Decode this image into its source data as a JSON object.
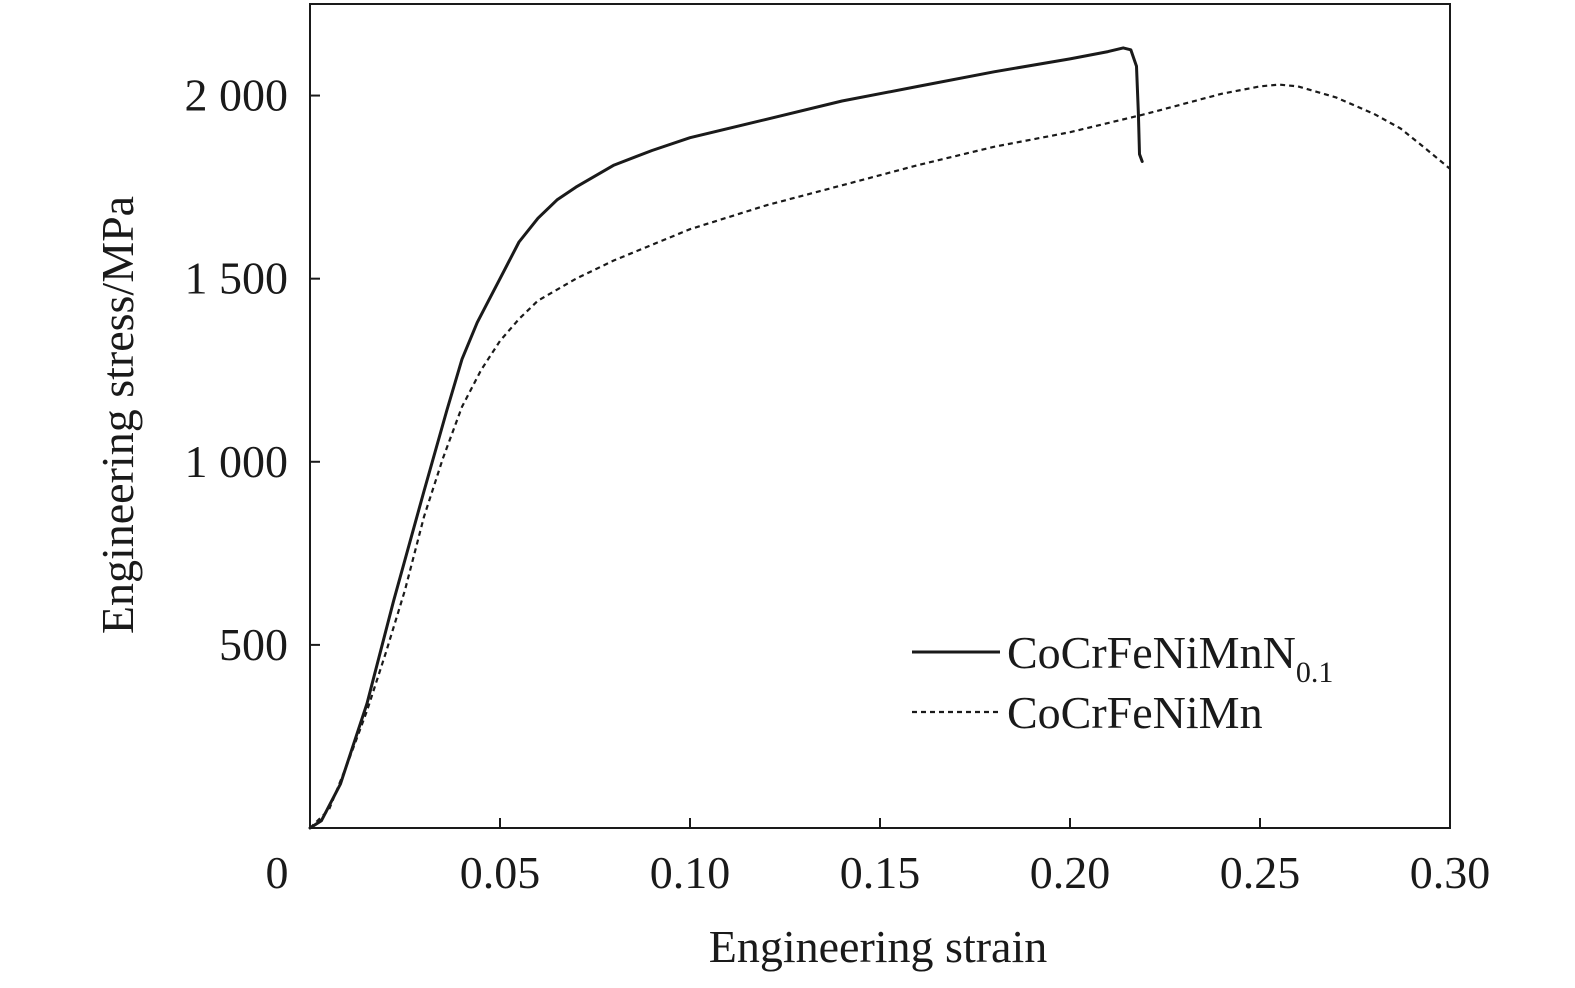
{
  "chart_data": {
    "type": "line",
    "title": "",
    "xlabel": "Engineering strain",
    "ylabel": "Engineering stress/MPa",
    "xlim": [
      0,
      0.3
    ],
    "ylim": [
      0,
      2250
    ],
    "grid": false,
    "legend_position": "bottom-right",
    "x_ticks": [
      0,
      0.05,
      0.1,
      0.15,
      0.2,
      0.25,
      0.3
    ],
    "x_tick_labels": [
      "0",
      "0.05",
      "0.10",
      "0.15",
      "0.20",
      "0.25",
      "0.30"
    ],
    "y_ticks": [
      500,
      1000,
      1500,
      2000
    ],
    "y_tick_labels": [
      "500",
      "1 000",
      "1 500",
      "2 000"
    ],
    "series": [
      {
        "name": "CoCrFeNiMnN0.1",
        "legend_main": "CoCrFeNiMnN",
        "legend_sub": "0.1",
        "style": "solid",
        "color": "#1a1a1a",
        "x": [
          0.0,
          0.003,
          0.008,
          0.015,
          0.022,
          0.03,
          0.036,
          0.04,
          0.044,
          0.047,
          0.05,
          0.055,
          0.06,
          0.065,
          0.07,
          0.08,
          0.09,
          0.1,
          0.12,
          0.14,
          0.16,
          0.18,
          0.2,
          0.21,
          0.214,
          0.216,
          0.2175,
          0.218,
          0.2183,
          0.219
        ],
        "y": [
          0,
          20,
          120,
          340,
          620,
          920,
          1140,
          1280,
          1380,
          1440,
          1500,
          1600,
          1665,
          1715,
          1750,
          1810,
          1850,
          1885,
          1935,
          1985,
          2025,
          2065,
          2100,
          2120,
          2130,
          2125,
          2080,
          1950,
          1840,
          1820
        ]
      },
      {
        "name": "CoCrFeNiMn",
        "legend_main": "CoCrFeNiMn",
        "legend_sub": "",
        "style": "dashed",
        "color": "#1a1a1a",
        "x": [
          0.0,
          0.005,
          0.01,
          0.015,
          0.02,
          0.025,
          0.03,
          0.035,
          0.04,
          0.045,
          0.05,
          0.055,
          0.06,
          0.07,
          0.08,
          0.1,
          0.12,
          0.14,
          0.16,
          0.18,
          0.2,
          0.22,
          0.24,
          0.25,
          0.255,
          0.26,
          0.27,
          0.28,
          0.287,
          0.293,
          0.3
        ],
        "y": [
          0,
          50,
          180,
          320,
          480,
          650,
          850,
          1010,
          1150,
          1250,
          1330,
          1390,
          1440,
          1500,
          1550,
          1635,
          1700,
          1755,
          1810,
          1860,
          1900,
          1950,
          2005,
          2025,
          2030,
          2025,
          1995,
          1950,
          1910,
          1860,
          1800
        ]
      }
    ]
  }
}
